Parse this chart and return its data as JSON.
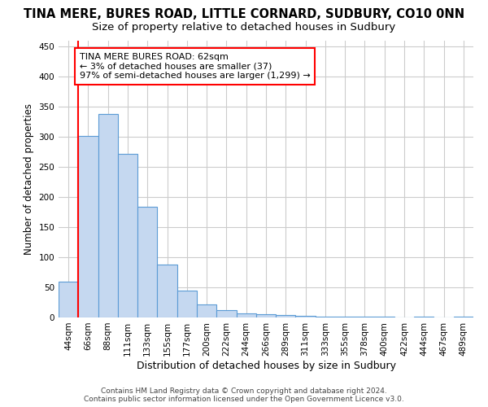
{
  "title": "TINA MERE, BURES ROAD, LITTLE CORNARD, SUDBURY, CO10 0NN",
  "subtitle": "Size of property relative to detached houses in Sudbury",
  "xlabel": "Distribution of detached houses by size in Sudbury",
  "ylabel": "Number of detached properties",
  "categories": [
    "44sqm",
    "66sqm",
    "88sqm",
    "111sqm",
    "133sqm",
    "155sqm",
    "177sqm",
    "200sqm",
    "222sqm",
    "244sqm",
    "266sqm",
    "289sqm",
    "311sqm",
    "333sqm",
    "355sqm",
    "378sqm",
    "400sqm",
    "422sqm",
    "444sqm",
    "467sqm",
    "489sqm"
  ],
  "values": [
    60,
    302,
    338,
    272,
    184,
    88,
    45,
    22,
    12,
    7,
    5,
    4,
    3,
    2,
    2,
    1,
    1,
    0,
    1,
    0,
    1
  ],
  "bar_color": "#c5d8f0",
  "bar_edge_color": "#5b9bd5",
  "annotation_text": "TINA MERE BURES ROAD: 62sqm\n← 3% of detached houses are smaller (37)\n97% of semi-detached houses are larger (1,299) →",
  "annotation_box_color": "white",
  "annotation_box_edge_color": "red",
  "marker_line_color": "red",
  "ylim": [
    0,
    460
  ],
  "yticks": [
    0,
    50,
    100,
    150,
    200,
    250,
    300,
    350,
    400,
    450
  ],
  "grid_color": "#cccccc",
  "background_color": "white",
  "footer_line1": "Contains HM Land Registry data © Crown copyright and database right 2024.",
  "footer_line2": "Contains public sector information licensed under the Open Government Licence v3.0.",
  "title_fontsize": 10.5,
  "subtitle_fontsize": 9.5,
  "ylabel_fontsize": 8.5,
  "xlabel_fontsize": 9,
  "tick_fontsize": 7.5,
  "footer_fontsize": 6.5
}
